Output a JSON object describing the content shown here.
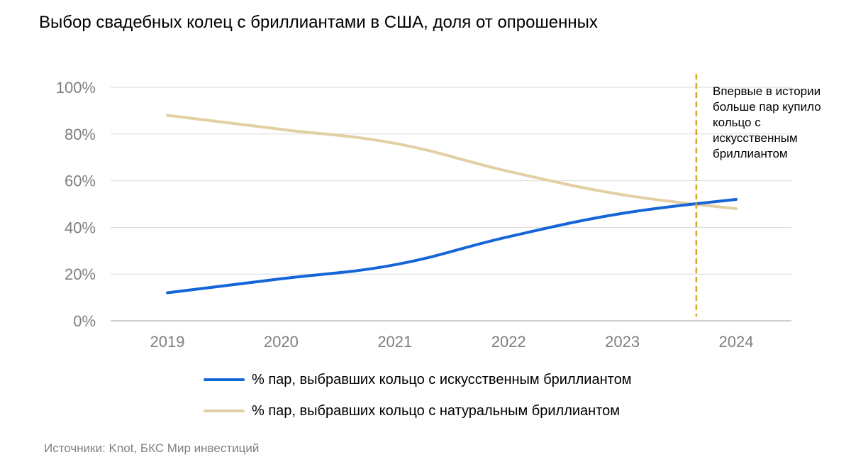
{
  "chart_data": {
    "type": "line",
    "title": "Выбор свадебных колец с бриллиантами в США, доля от опрошенных",
    "categories": [
      "2019",
      "2020",
      "2021",
      "2022",
      "2023",
      "2024"
    ],
    "x": [
      2019,
      2020,
      2021,
      2022,
      2023,
      2024
    ],
    "y_ticks": [
      "0%",
      "20%",
      "40%",
      "60%",
      "80%",
      "100%"
    ],
    "y_tick_values": [
      0,
      20,
      40,
      60,
      80,
      100
    ],
    "ylim": [
      0,
      100
    ],
    "xlabel": "",
    "ylabel": "",
    "grid": true,
    "series": [
      {
        "name": "% пар, выбравших кольцо с искусственным бриллиантом",
        "values": [
          12,
          18,
          24,
          36,
          46,
          52
        ],
        "color": "#1565d8"
      },
      {
        "name": "% пар, выбравших кольцо с натуральным бриллиантом",
        "values": [
          88,
          82,
          76,
          64,
          54,
          48
        ],
        "color": "#e3cfa4"
      }
    ],
    "annotation": {
      "text": "Впервые в истории больше пар купило кольцо с искусственным бриллиантом",
      "x": 2023.65,
      "line_color": "#d9a52b"
    },
    "legend_position": "bottom"
  },
  "source": "Источники: Knot, БКС Мир инвестиций",
  "colors": {
    "grid": "#d9d9d9",
    "axis": "#bfbfbf",
    "tick": "#7f7f7f"
  }
}
